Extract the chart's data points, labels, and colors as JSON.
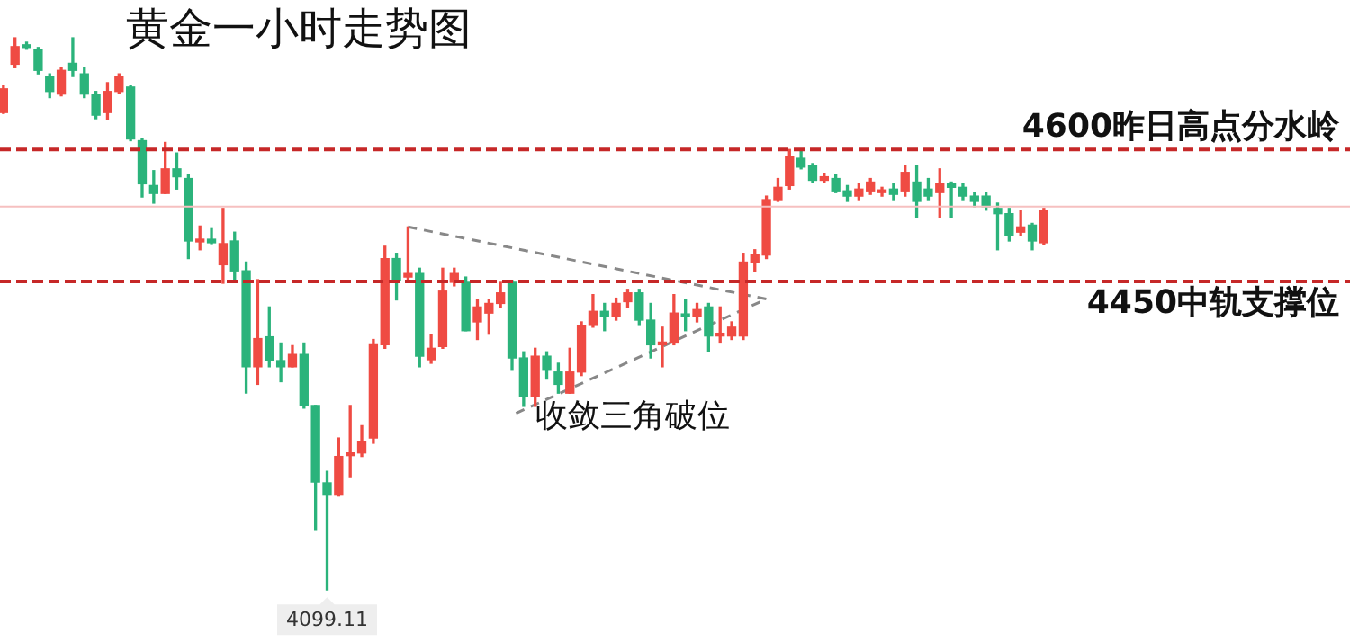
{
  "chart_data": {
    "type": "candlestick",
    "title": "黄金一小时走势图",
    "categories": [
      null,
      null,
      null,
      null,
      null,
      null,
      null,
      null,
      null,
      null,
      null,
      null,
      null,
      null,
      null,
      null,
      null,
      null,
      null,
      null,
      null,
      null,
      null,
      null,
      null,
      null,
      null,
      null,
      null,
      null,
      null,
      null,
      null,
      null,
      null,
      null,
      null,
      null,
      null,
      null,
      null,
      null,
      null,
      null,
      null,
      null,
      null,
      null,
      null,
      null,
      null,
      null,
      null,
      null,
      null,
      null,
      null,
      null,
      null,
      null,
      null,
      null,
      null,
      null,
      null,
      null,
      null,
      null,
      null,
      null,
      null,
      null,
      null,
      null,
      null,
      null,
      null,
      null,
      null,
      null,
      null,
      null,
      null,
      null,
      null,
      null,
      null,
      null,
      null,
      null,
      null
    ],
    "ohlc": [
      [
        4642,
        4673,
        4641,
        4669
      ],
      [
        4697,
        4727,
        4693,
        4717
      ],
      [
        4718,
        4722,
        4714,
        4716
      ],
      [
        4714,
        4716,
        4686,
        4690
      ],
      [
        4683,
        4686,
        4659,
        4666
      ],
      [
        4663,
        4693,
        4661,
        4690
      ],
      [
        4698,
        4727,
        4683,
        4690
      ],
      [
        4686,
        4693,
        4659,
        4663
      ],
      [
        4663,
        4666,
        4635,
        4639
      ],
      [
        4642,
        4676,
        4634,
        4666
      ],
      [
        4666,
        4686,
        4664,
        4683
      ],
      [
        4671,
        4673,
        4610,
        4612
      ],
      [
        4610,
        4612,
        4546,
        4561
      ],
      [
        4559,
        4576,
        4539,
        4550
      ],
      [
        4550,
        4608,
        4550,
        4578
      ],
      [
        4578,
        4596,
        4555,
        4569
      ],
      [
        4567,
        4571,
        4476,
        4496
      ],
      [
        4495,
        4513,
        4486,
        4498
      ],
      [
        4498,
        4510,
        4493,
        4494
      ],
      [
        4469,
        4533,
        4448,
        4493
      ],
      [
        4496,
        4506,
        4452,
        4462
      ],
      [
        4462,
        4472,
        4323,
        4353
      ],
      [
        4353,
        4452,
        4333,
        4385
      ],
      [
        4387,
        4421,
        4353,
        4360
      ],
      [
        4360,
        4380,
        4336,
        4353
      ],
      [
        4353,
        4377,
        4353,
        4367
      ],
      [
        4367,
        4380,
        4306,
        4309
      ],
      [
        4309,
        4309,
        4168,
        4222
      ],
      [
        4221,
        4234,
        4099.11,
        4207
      ],
      [
        4207,
        4272,
        4206,
        4251
      ],
      [
        4252,
        4309,
        4227,
        4253
      ],
      [
        4255,
        4286,
        4251,
        4268
      ],
      [
        4272,
        4384,
        4266,
        4378
      ],
      [
        4378,
        4490,
        4374,
        4476
      ],
      [
        4476,
        4482,
        4429,
        4451
      ],
      [
        4455,
        4512,
        4449,
        4459
      ],
      [
        4459,
        4465,
        4353,
        4365
      ],
      [
        4361,
        4390,
        4357,
        4374
      ],
      [
        4376,
        4465,
        4374,
        4439
      ],
      [
        4449,
        4465,
        4445,
        4459
      ],
      [
        4449,
        4455,
        4394,
        4394
      ],
      [
        4404,
        4429,
        4384,
        4421
      ],
      [
        4414,
        4429,
        4390,
        4425
      ],
      [
        4425,
        4449,
        4421,
        4437
      ],
      [
        4449,
        4451,
        4349,
        4363
      ],
      [
        4363,
        4370,
        4308,
        4319
      ],
      [
        4319,
        4374,
        4308,
        4365
      ],
      [
        4365,
        4370,
        4339,
        4349
      ],
      [
        4347,
        4357,
        4323,
        4333
      ],
      [
        4323,
        4374,
        4323,
        4347
      ],
      [
        4347,
        4404,
        4343,
        4400
      ],
      [
        4400,
        4435,
        4398,
        4416
      ],
      [
        4416,
        4425,
        4394,
        4410
      ],
      [
        4410,
        4431,
        4406,
        4425
      ],
      [
        4427,
        4441,
        4421,
        4437
      ],
      [
        4437,
        4441,
        4400,
        4406
      ],
      [
        4406,
        4425,
        4363,
        4378
      ],
      [
        4378,
        4398,
        4353,
        4380
      ],
      [
        4380,
        4435,
        4378,
        4414
      ],
      [
        4412,
        4429,
        4394,
        4410
      ],
      [
        4410,
        4425,
        4404,
        4418
      ],
      [
        4421,
        4425,
        4370,
        4388
      ],
      [
        4388,
        4421,
        4380,
        4390
      ],
      [
        4388,
        4404,
        4384,
        4398
      ],
      [
        4388,
        4482,
        4384,
        4472
      ],
      [
        4472,
        4486,
        4461,
        4480
      ],
      [
        4480,
        4547,
        4476,
        4543
      ],
      [
        4543,
        4567,
        4541,
        4557
      ],
      [
        4559,
        4600,
        4555,
        4592
      ],
      [
        4590,
        4598,
        4578,
        4580
      ],
      [
        4582,
        4584,
        4563,
        4565
      ],
      [
        4565,
        4573,
        4563,
        4569
      ],
      [
        4567,
        4571,
        4551,
        4553
      ],
      [
        4553,
        4559,
        4541,
        4547
      ],
      [
        4547,
        4561,
        4543,
        4555
      ],
      [
        4553,
        4567,
        4549,
        4563
      ],
      [
        4551,
        4557,
        4547,
        4553
      ],
      [
        4555,
        4561,
        4543,
        4549
      ],
      [
        4553,
        4582,
        4547,
        4574
      ],
      [
        4563,
        4582,
        4523,
        4541
      ],
      [
        4555,
        4567,
        4543,
        4547
      ],
      [
        4551,
        4578,
        4523,
        4561
      ],
      [
        4561,
        4563,
        4523,
        4557
      ],
      [
        4557,
        4561,
        4543,
        4547
      ],
      [
        4547,
        4551,
        4535,
        4541
      ],
      [
        4547,
        4551,
        4531,
        4535
      ],
      [
        4533,
        4539,
        4486,
        4527
      ],
      [
        4527,
        4533,
        4496,
        4502
      ],
      [
        4506,
        4531,
        4502,
        4512
      ],
      [
        4514,
        4516,
        4486,
        4496
      ],
      [
        4494,
        4533,
        4492,
        4531
      ]
    ],
    "ylim": [
      4040,
      4770
    ],
    "tick_labels": false,
    "ref_lines": [
      {
        "axis": "y",
        "value": 4600,
        "label": "4600昨日高点分水岭",
        "color": "#c62828",
        "line_style": "dashed"
      },
      {
        "axis": "y",
        "value": 4450,
        "label": "4450中轨支撑位",
        "color": "#c62828",
        "line_style": "dashed"
      },
      {
        "axis": "y",
        "value": 4535,
        "color": "#f6c0c0",
        "line_style": "solid"
      }
    ],
    "annotations": [
      "收敛三角破位",
      {
        "text": "4099.11",
        "y": 4099.11
      }
    ]
  }
}
